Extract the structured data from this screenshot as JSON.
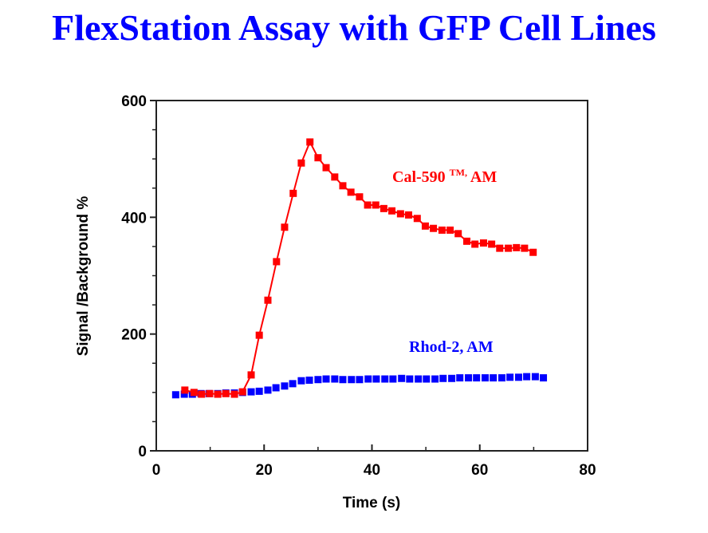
{
  "page": {
    "title": "FlexStation Assay with GFP Cell Lines"
  },
  "chart_data": {
    "type": "line",
    "title": "FlexStation Assay with GFP Cell Lines",
    "xlabel": "Time (s)",
    "ylabel": "Signal /Background %",
    "xlim": [
      0,
      80
    ],
    "ylim": [
      0,
      600
    ],
    "xticks": [
      0,
      20,
      40,
      60,
      80
    ],
    "xticks_minor": [
      10,
      30,
      50,
      70
    ],
    "yticks": [
      0,
      200,
      400,
      600
    ],
    "yticks_minor": [
      50,
      100,
      150,
      250,
      300,
      350,
      450,
      500,
      550
    ],
    "xtick_labels": [
      "0",
      "20",
      "40",
      "60",
      "80"
    ],
    "ytick_labels": [
      "0",
      "200",
      "400",
      "600"
    ],
    "grid": false,
    "legend": "inline annotations",
    "series": [
      {
        "name": "Rhod-2, AM",
        "label_text": "Rhod-2, AM",
        "color": "#0000ff",
        "marker": "square",
        "line": false,
        "x": [
          3.6,
          5.2,
          6.7,
          8.3,
          9.8,
          11.4,
          12.9,
          14.5,
          16.0,
          17.6,
          19.1,
          20.7,
          22.2,
          23.8,
          25.3,
          26.9,
          28.4,
          30.0,
          31.5,
          33.1,
          34.6,
          36.2,
          37.7,
          39.3,
          40.8,
          42.4,
          43.9,
          45.5,
          47.0,
          48.6,
          50.1,
          51.7,
          53.2,
          54.8,
          56.3,
          57.9,
          59.4,
          61.0,
          62.5,
          64.1,
          65.6,
          67.2,
          68.7,
          70.3,
          71.8
        ],
        "y": [
          96,
          97,
          97,
          98,
          98,
          98,
          99,
          99,
          100,
          101,
          102,
          104,
          108,
          111,
          115,
          120,
          121,
          122,
          123,
          123,
          122,
          122,
          122,
          123,
          123,
          123,
          123,
          124,
          123,
          123,
          123,
          123,
          124,
          124,
          125,
          125,
          125,
          125,
          125,
          125,
          126,
          126,
          127,
          127,
          125
        ]
      },
      {
        "name": "Cal-590™, AM",
        "label_main": "Cal-590 ",
        "label_sup": "TM,",
        "label_tail": " AM",
        "color": "#ff0000",
        "marker": "square",
        "line": true,
        "x": [
          5.3,
          7.0,
          8.4,
          9.9,
          11.4,
          12.9,
          14.5,
          16.0,
          17.6,
          19.1,
          20.7,
          22.3,
          23.8,
          25.4,
          26.9,
          28.5,
          30.0,
          31.5,
          33.1,
          34.6,
          36.1,
          37.7,
          39.2,
          40.7,
          42.2,
          43.7,
          45.3,
          46.8,
          48.4,
          49.9,
          51.4,
          53.0,
          54.5,
          56.0,
          57.6,
          59.1,
          60.7,
          62.2,
          63.7,
          65.3,
          66.8,
          68.3,
          69.9
        ],
        "y": [
          104,
          100,
          97,
          98,
          97,
          98,
          97,
          101,
          130,
          198,
          258,
          324,
          383,
          441,
          493,
          529,
          502,
          485,
          469,
          454,
          443,
          435,
          421,
          421,
          415,
          411,
          406,
          404,
          398,
          385,
          381,
          378,
          378,
          372,
          359,
          354,
          356,
          354,
          347,
          347,
          348,
          347,
          340
        ]
      }
    ]
  }
}
